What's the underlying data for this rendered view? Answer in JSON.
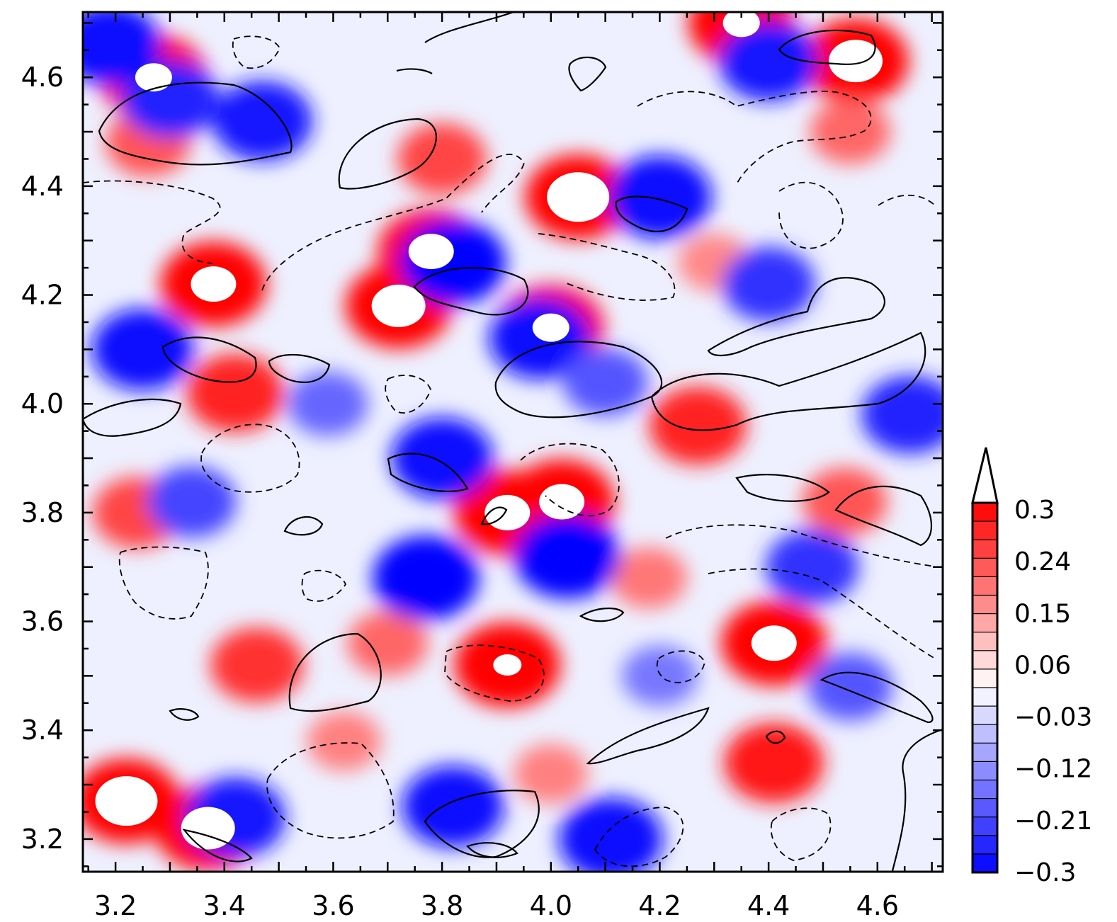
{
  "chart_data": {
    "type": "heatmap",
    "title": "",
    "xlabel": "",
    "ylabel": "",
    "xlim": [
      3.14,
      4.72
    ],
    "ylim": [
      3.14,
      4.72
    ],
    "x_ticks": [
      "3.2",
      "3.4",
      "3.6",
      "3.8",
      "4.0",
      "4.2",
      "4.4",
      "4.6"
    ],
    "y_ticks": [
      "3.2",
      "3.4",
      "3.6",
      "3.8",
      "4.0",
      "4.2",
      "4.4",
      "4.6"
    ],
    "colorbar": {
      "range": [
        -0.3,
        0.3
      ],
      "extend": "max",
      "labels": [
        "0.3",
        "0.24",
        "0.15",
        "0.06",
        "−0.03",
        "−0.12",
        "−0.21",
        "−0.3"
      ],
      "negative_color": "#0000ff",
      "positive_color": "#ff0000",
      "neutral_color": "#ffffff"
    },
    "field_features": [
      {
        "x": 3.27,
        "y": 4.6,
        "value": 0.32
      },
      {
        "x": 3.38,
        "y": 4.22,
        "value": 0.33
      },
      {
        "x": 3.72,
        "y": 4.18,
        "value": 0.34
      },
      {
        "x": 3.78,
        "y": 4.28,
        "value": 0.33
      },
      {
        "x": 4.05,
        "y": 4.38,
        "value": 0.35
      },
      {
        "x": 4.0,
        "y": 4.14,
        "value": 0.32
      },
      {
        "x": 4.56,
        "y": 4.63,
        "value": 0.34
      },
      {
        "x": 4.35,
        "y": 4.7,
        "value": 0.32
      },
      {
        "x": 3.92,
        "y": 3.8,
        "value": 0.33
      },
      {
        "x": 4.02,
        "y": 3.82,
        "value": 0.33
      },
      {
        "x": 3.92,
        "y": 3.52,
        "value": 0.31
      },
      {
        "x": 4.41,
        "y": 3.56,
        "value": 0.33
      },
      {
        "x": 3.22,
        "y": 3.27,
        "value": 0.35
      },
      {
        "x": 3.37,
        "y": 3.22,
        "value": 0.34
      },
      {
        "x": 3.42,
        "y": 4.02,
        "value": 0.26
      },
      {
        "x": 4.27,
        "y": 3.96,
        "value": 0.26
      },
      {
        "x": 4.41,
        "y": 3.34,
        "value": 0.27
      },
      {
        "x": 3.46,
        "y": 3.52,
        "value": 0.24
      },
      {
        "x": 3.26,
        "y": 4.48,
        "value": 0.2
      },
      {
        "x": 3.8,
        "y": 4.45,
        "value": 0.22
      },
      {
        "x": 4.55,
        "y": 4.5,
        "value": 0.18
      },
      {
        "x": 4.54,
        "y": 3.82,
        "value": 0.2
      },
      {
        "x": 3.24,
        "y": 3.8,
        "value": 0.22
      },
      {
        "x": 3.7,
        "y": 3.56,
        "value": 0.18
      },
      {
        "x": 4.18,
        "y": 3.68,
        "value": 0.16
      },
      {
        "x": 3.62,
        "y": 3.38,
        "value": 0.15
      },
      {
        "x": 4.0,
        "y": 3.32,
        "value": 0.15
      },
      {
        "x": 4.3,
        "y": 4.26,
        "value": 0.14
      },
      {
        "x": 3.3,
        "y": 4.56,
        "value": -0.26
      },
      {
        "x": 3.19,
        "y": 4.66,
        "value": -0.28
      },
      {
        "x": 3.47,
        "y": 4.52,
        "value": -0.27
      },
      {
        "x": 3.25,
        "y": 4.1,
        "value": -0.28
      },
      {
        "x": 3.82,
        "y": 4.26,
        "value": -0.3
      },
      {
        "x": 3.98,
        "y": 4.12,
        "value": -0.28
      },
      {
        "x": 4.2,
        "y": 4.38,
        "value": -0.29
      },
      {
        "x": 4.4,
        "y": 4.63,
        "value": -0.27
      },
      {
        "x": 4.4,
        "y": 4.22,
        "value": -0.24
      },
      {
        "x": 3.8,
        "y": 3.9,
        "value": -0.28
      },
      {
        "x": 4.03,
        "y": 3.72,
        "value": -0.3
      },
      {
        "x": 3.77,
        "y": 3.68,
        "value": -0.31
      },
      {
        "x": 3.42,
        "y": 3.24,
        "value": -0.27
      },
      {
        "x": 3.82,
        "y": 3.26,
        "value": -0.28
      },
      {
        "x": 4.11,
        "y": 3.2,
        "value": -0.29
      },
      {
        "x": 3.34,
        "y": 3.82,
        "value": -0.22
      },
      {
        "x": 4.48,
        "y": 3.7,
        "value": -0.24
      },
      {
        "x": 4.55,
        "y": 3.48,
        "value": -0.2
      },
      {
        "x": 4.66,
        "y": 3.98,
        "value": -0.26
      },
      {
        "x": 3.59,
        "y": 4.0,
        "value": -0.18
      },
      {
        "x": 4.1,
        "y": 4.04,
        "value": -0.2
      },
      {
        "x": 4.2,
        "y": 3.5,
        "value": -0.16
      }
    ]
  }
}
